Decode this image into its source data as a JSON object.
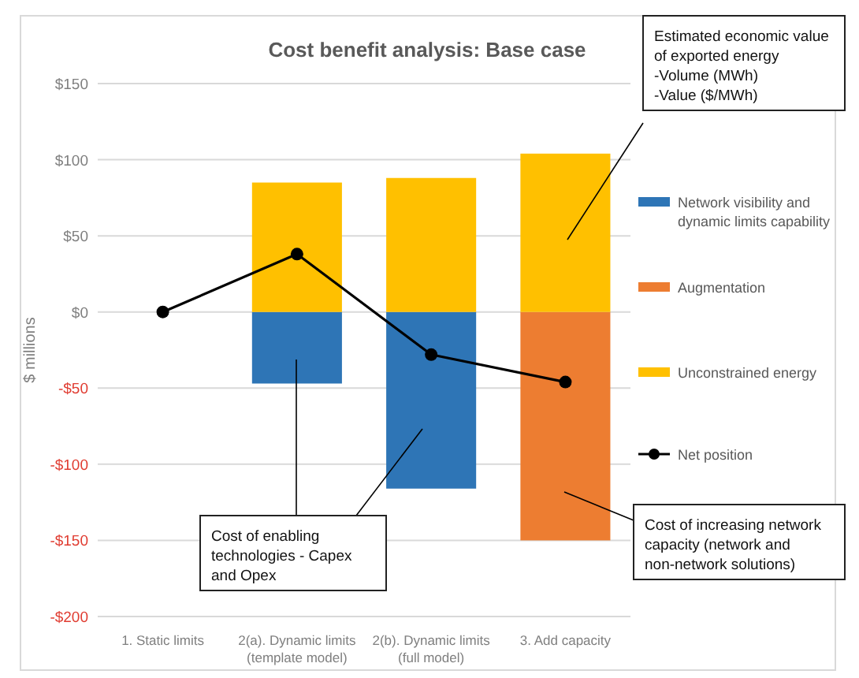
{
  "chart_data": {
    "type": "bar",
    "stacked": true,
    "title": "Cost benefit analysis: Base case",
    "ylabel": "$ millions",
    "categories": [
      "1. Static limits",
      "2(a). Dynamic limits\n(template model)",
      "2(b). Dynamic limits\n(full model)",
      "3. Add capacity"
    ],
    "series": [
      {
        "name": "Network visibility and dynamic limits capability",
        "color": "#2e75b6",
        "values": [
          null,
          -47,
          -116,
          null
        ]
      },
      {
        "name": "Augmentation",
        "color": "#ed7d31",
        "values": [
          null,
          null,
          null,
          -150
        ]
      },
      {
        "name": "Unconstrained energy",
        "color": "#ffc000",
        "values": [
          null,
          85,
          88,
          104
        ]
      },
      {
        "name": "Net position",
        "type": "line",
        "color": "#000000",
        "marker": "circle",
        "values": [
          0,
          38,
          -28,
          -46
        ]
      }
    ],
    "ylim": [
      -200,
      150
    ],
    "yticks": [
      {
        "value": -200,
        "label": "-$200"
      },
      {
        "value": -150,
        "label": "-$150"
      },
      {
        "value": -100,
        "label": "-$100"
      },
      {
        "value": -50,
        "label": "-$50"
      },
      {
        "value": 0,
        "label": "$0"
      },
      {
        "value": 50,
        "label": "$50"
      },
      {
        "value": 100,
        "label": "$100"
      },
      {
        "value": 150,
        "label": "$150"
      }
    ],
    "grid": "y",
    "legend": "right",
    "annotations": [
      "Estimated economic value of exported energy\n-Volume (MWh)\n-Value ($/MWh)",
      "Cost of enabling technologies - Capex and Opex",
      "Cost of increasing network capacity (network and non-network solutions)"
    ]
  }
}
